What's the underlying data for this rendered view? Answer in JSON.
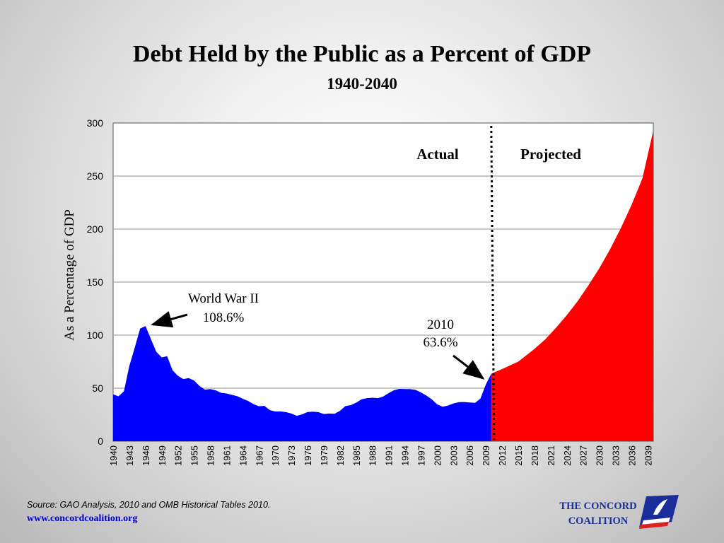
{
  "slide": {
    "title": "Debt Held by the Public as a Percent of GDP",
    "subtitle": "1940-2040",
    "source": "Source:  GAO Analysis, 2010 and OMB Historical Tables 2010.",
    "url": "www.concordcoalition.org",
    "logo_line1": "THE CONCORD",
    "logo_line2": "COALITION"
  },
  "chart_data": {
    "type": "area",
    "title": "Debt Held by the Public as a Percent of GDP",
    "subtitle": "1940-2040",
    "ylabel": "As a Percentage of GDP",
    "xlabel": "",
    "ylim": [
      0,
      300
    ],
    "xlim": [
      1940,
      2040
    ],
    "yticks": [
      0,
      50,
      100,
      150,
      200,
      250,
      300
    ],
    "xtick_labels": [
      "1940",
      "1943",
      "1946",
      "1949",
      "1952",
      "1955",
      "1958",
      "1961",
      "1964",
      "1967",
      "1970",
      "1973",
      "1976",
      "1979",
      "1982",
      "1985",
      "1988",
      "1991",
      "1994",
      "1997",
      "2000",
      "2003",
      "2006",
      "2009",
      "2012",
      "2015",
      "2018",
      "2021",
      "2024",
      "2027",
      "2030",
      "2033",
      "2036",
      "2039"
    ],
    "grid": true,
    "divider_x": 2010,
    "region_labels": [
      "Actual",
      "Projected"
    ],
    "colors": {
      "actual": "#0000ff",
      "projected": "#ff0000",
      "divider": "#000000"
    },
    "series": [
      {
        "name": "Actual",
        "x": [
          1940,
          1941,
          1942,
          1943,
          1944,
          1945,
          1946,
          1947,
          1948,
          1949,
          1950,
          1951,
          1952,
          1953,
          1954,
          1955,
          1956,
          1957,
          1958,
          1959,
          1960,
          1961,
          1962,
          1963,
          1964,
          1965,
          1966,
          1967,
          1968,
          1969,
          1970,
          1971,
          1972,
          1973,
          1974,
          1975,
          1976,
          1977,
          1978,
          1979,
          1980,
          1981,
          1982,
          1983,
          1984,
          1985,
          1986,
          1987,
          1988,
          1989,
          1990,
          1991,
          1992,
          1993,
          1994,
          1995,
          1996,
          1997,
          1998,
          1999,
          2000,
          2001,
          2002,
          2003,
          2004,
          2005,
          2006,
          2007,
          2008,
          2009,
          2010
        ],
        "values": [
          44.2,
          42.3,
          47.0,
          70.9,
          88.3,
          106.2,
          108.6,
          96.2,
          84.3,
          79.0,
          80.2,
          66.9,
          61.6,
          58.6,
          59.5,
          57.2,
          52.0,
          48.6,
          49.2,
          47.9,
          45.6,
          45.0,
          43.7,
          42.4,
          40.0,
          37.9,
          34.9,
          32.9,
          33.3,
          29.3,
          28.0,
          28.1,
          27.4,
          26.1,
          23.9,
          25.3,
          27.5,
          27.8,
          27.4,
          25.6,
          26.1,
          25.8,
          28.7,
          33.1,
          34.0,
          36.4,
          39.5,
          40.6,
          41.0,
          40.6,
          42.1,
          45.3,
          48.1,
          49.3,
          49.2,
          49.1,
          48.4,
          45.9,
          43.0,
          39.4,
          34.7,
          32.5,
          33.6,
          35.6,
          36.8,
          36.9,
          36.5,
          36.2,
          40.2,
          53.5,
          63.6
        ]
      },
      {
        "name": "Projected",
        "x": [
          2010,
          2012,
          2015,
          2018,
          2020,
          2022,
          2024,
          2026,
          2028,
          2030,
          2032,
          2034,
          2036,
          2038,
          2040
        ],
        "values": [
          63.6,
          68.0,
          75.0,
          87.0,
          96.0,
          107.0,
          119.0,
          132.0,
          147.0,
          163.0,
          181.0,
          201.0,
          223.0,
          248.0,
          293.0
        ]
      }
    ],
    "annotations": [
      {
        "text_line1": "World War II",
        "text_line2": "108.6%",
        "x": 1946,
        "y": 108.6
      },
      {
        "text_line1": "2010",
        "text_line2": "63.6%",
        "x": 2010,
        "y": 63.6
      }
    ]
  }
}
